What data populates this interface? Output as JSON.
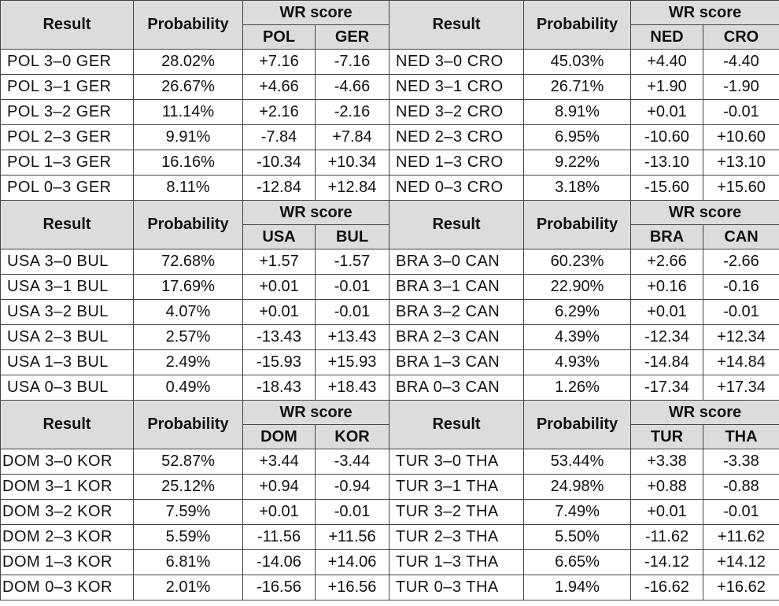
{
  "header_labels": {
    "result": "Result",
    "probability": "Probability",
    "wr_score": "WR score"
  },
  "groups": [
    {
      "left": {
        "team_a": "POL",
        "team_b": "GER",
        "rows": [
          {
            "result": "POL 3–0 GER",
            "prob": "28.02%",
            "a": "+7.16",
            "b": "-7.16"
          },
          {
            "result": "POL 3–1 GER",
            "prob": "26.67%",
            "a": "+4.66",
            "b": "-4.66"
          },
          {
            "result": "POL 3–2 GER",
            "prob": "11.14%",
            "a": "+2.16",
            "b": "-2.16"
          },
          {
            "result": "POL 2–3 GER",
            "prob": "9.91%",
            "a": "-7.84",
            "b": "+7.84"
          },
          {
            "result": "POL 1–3 GER",
            "prob": "16.16%",
            "a": "-10.34",
            "b": "+10.34"
          },
          {
            "result": "POL 0–3 GER",
            "prob": "8.11%",
            "a": "-12.84",
            "b": "+12.84"
          }
        ]
      },
      "right": {
        "team_a": "NED",
        "team_b": "CRO",
        "rows": [
          {
            "result": "NED 3–0 CRO",
            "prob": "45.03%",
            "a": "+4.40",
            "b": "-4.40"
          },
          {
            "result": "NED 3–1 CRO",
            "prob": "26.71%",
            "a": "+1.90",
            "b": "-1.90"
          },
          {
            "result": "NED 3–2 CRO",
            "prob": "8.91%",
            "a": "+0.01",
            "b": "-0.01"
          },
          {
            "result": "NED 2–3 CRO",
            "prob": "6.95%",
            "a": "-10.60",
            "b": "+10.60"
          },
          {
            "result": "NED 1–3 CRO",
            "prob": "9.22%",
            "a": "-13.10",
            "b": "+13.10"
          },
          {
            "result": "NED 0–3 CRO",
            "prob": "3.18%",
            "a": "-15.60",
            "b": "+15.60"
          }
        ]
      }
    },
    {
      "left": {
        "team_a": "USA",
        "team_b": "BUL",
        "rows": [
          {
            "result": "USA 3–0 BUL",
            "prob": "72.68%",
            "a": "+1.57",
            "b": "-1.57"
          },
          {
            "result": "USA 3–1 BUL",
            "prob": "17.69%",
            "a": "+0.01",
            "b": "-0.01"
          },
          {
            "result": "USA 3–2 BUL",
            "prob": "4.07%",
            "a": "+0.01",
            "b": "-0.01"
          },
          {
            "result": "USA 2–3 BUL",
            "prob": "2.57%",
            "a": "-13.43",
            "b": "+13.43"
          },
          {
            "result": "USA 1–3 BUL",
            "prob": "2.49%",
            "a": "-15.93",
            "b": "+15.93"
          },
          {
            "result": "USA 0–3 BUL",
            "prob": "0.49%",
            "a": "-18.43",
            "b": "+18.43"
          }
        ]
      },
      "right": {
        "team_a": "BRA",
        "team_b": "CAN",
        "rows": [
          {
            "result": "BRA 3–0 CAN",
            "prob": "60.23%",
            "a": "+2.66",
            "b": "-2.66"
          },
          {
            "result": "BRA 3–1 CAN",
            "prob": "22.90%",
            "a": "+0.16",
            "b": "-0.16"
          },
          {
            "result": "BRA 3–2 CAN",
            "prob": "6.29%",
            "a": "+0.01",
            "b": "-0.01"
          },
          {
            "result": "BRA 2–3 CAN",
            "prob": "4.39%",
            "a": "-12.34",
            "b": "+12.34"
          },
          {
            "result": "BRA 1–3 CAN",
            "prob": "4.93%",
            "a": "-14.84",
            "b": "+14.84"
          },
          {
            "result": "BRA 0–3 CAN",
            "prob": "1.26%",
            "a": "-17.34",
            "b": "+17.34"
          }
        ]
      }
    },
    {
      "left": {
        "team_a": "DOM",
        "team_b": "KOR",
        "rows": [
          {
            "result": "DOM 3–0 KOR",
            "prob": "52.87%",
            "a": "+3.44",
            "b": "-3.44"
          },
          {
            "result": "DOM 3–1 KOR",
            "prob": "25.12%",
            "a": "+0.94",
            "b": "-0.94"
          },
          {
            "result": "DOM 3–2 KOR",
            "prob": "7.59%",
            "a": "+0.01",
            "b": "-0.01"
          },
          {
            "result": "DOM 2–3 KOR",
            "prob": "5.59%",
            "a": "-11.56",
            "b": "+11.56"
          },
          {
            "result": "DOM 1–3 KOR",
            "prob": "6.81%",
            "a": "-14.06",
            "b": "+14.06"
          },
          {
            "result": "DOM 0–3 KOR",
            "prob": "2.01%",
            "a": "-16.56",
            "b": "+16.56"
          }
        ]
      },
      "right": {
        "team_a": "TUR",
        "team_b": "THA",
        "rows": [
          {
            "result": "TUR 3–0 THA",
            "prob": "53.44%",
            "a": "+3.38",
            "b": "-3.38"
          },
          {
            "result": "TUR 3–1 THA",
            "prob": "24.98%",
            "a": "+0.88",
            "b": "-0.88"
          },
          {
            "result": "TUR 3–2 THA",
            "prob": "7.49%",
            "a": "+0.01",
            "b": "-0.01"
          },
          {
            "result": "TUR 2–3 THA",
            "prob": "5.50%",
            "a": "-11.62",
            "b": "+11.62"
          },
          {
            "result": "TUR 1–3 THA",
            "prob": "6.65%",
            "a": "-14.12",
            "b": "+14.12"
          },
          {
            "result": "TUR 0–3 THA",
            "prob": "1.94%",
            "a": "-16.62",
            "b": "+16.62"
          }
        ]
      }
    }
  ]
}
